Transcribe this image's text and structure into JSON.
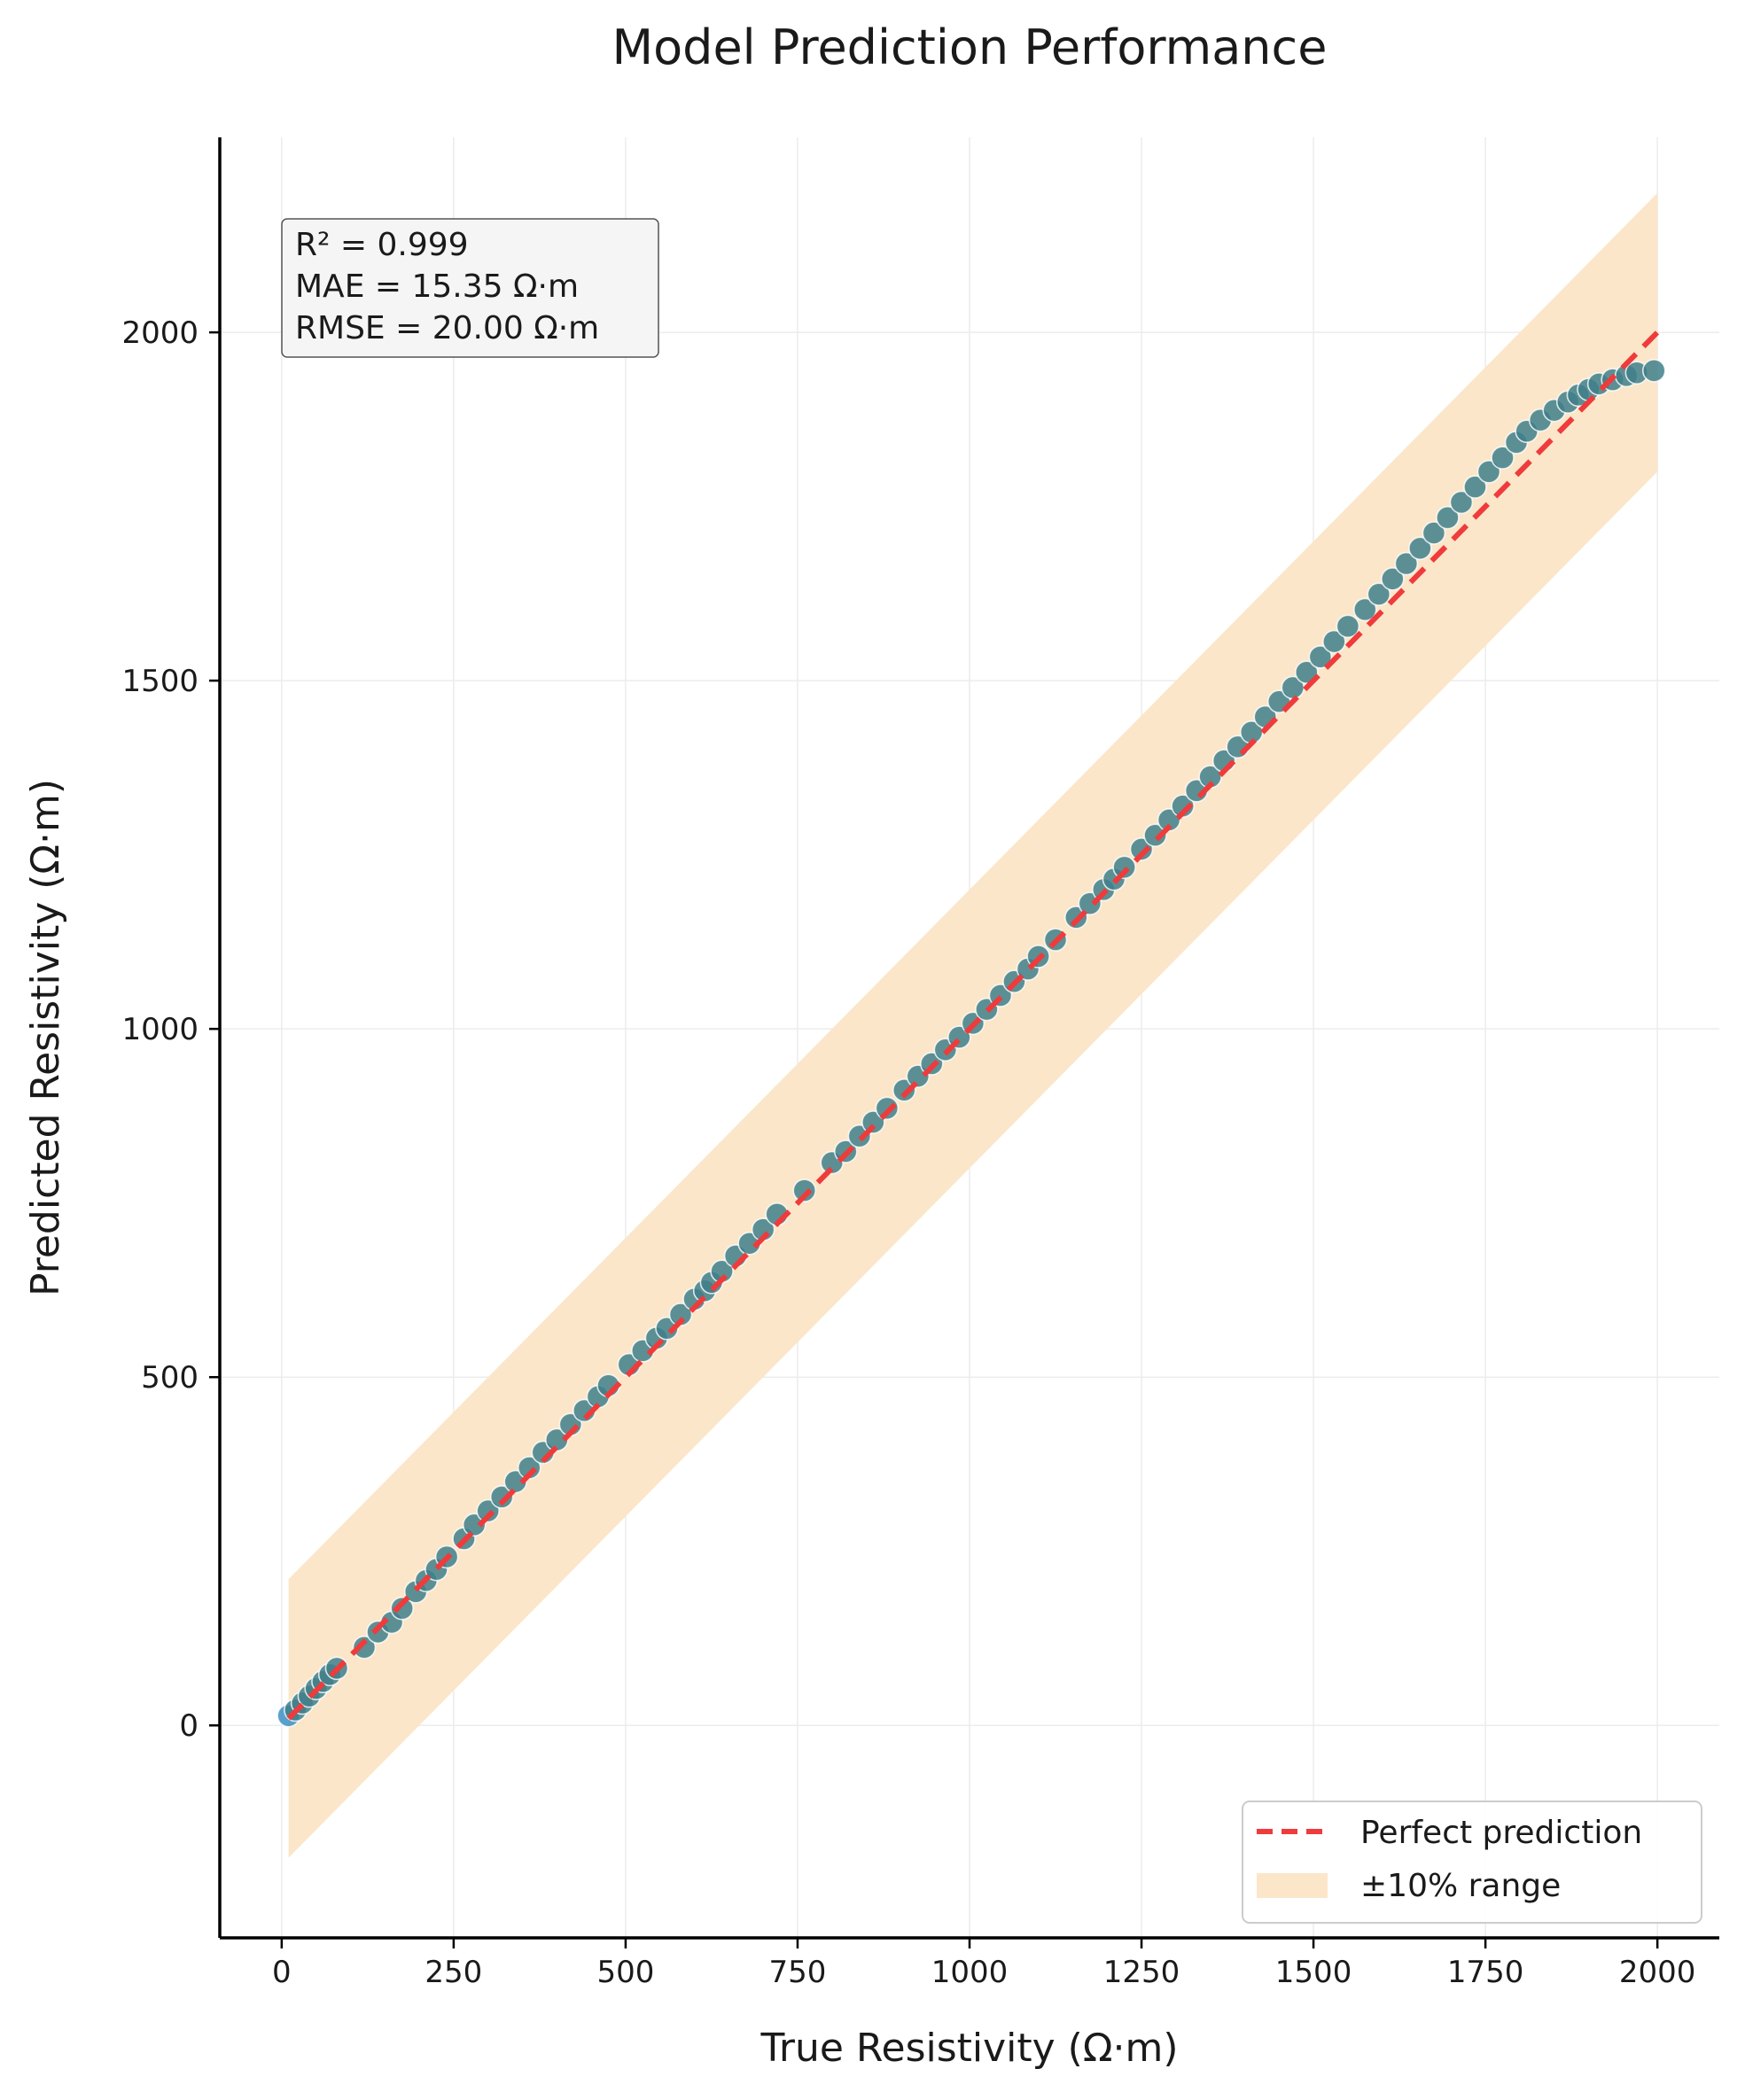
{
  "chart_data": {
    "type": "scatter",
    "title": "Model Prediction Performance",
    "xlabel": "True Resistivity (Ω·m)",
    "ylabel": "Predicted Resistivity (Ω·m)",
    "xlim": [
      -90,
      2090
    ],
    "ylim": [
      -305,
      2280
    ],
    "xticks": [
      0,
      250,
      500,
      750,
      1000,
      1250,
      1500,
      1750,
      2000
    ],
    "yticks": [
      0,
      500,
      1000,
      1500,
      2000
    ],
    "grid": true,
    "stats": {
      "r2": "R² = 0.999",
      "mae": "MAE = 15.35 Ω·m",
      "rmse": "RMSE = 20.00 Ω·m"
    },
    "legend": {
      "placement": "lower-right",
      "entries": [
        {
          "label": "Perfect prediction",
          "type": "line",
          "color": "#ef3b3b"
        },
        {
          "label": "±10% range",
          "type": "band",
          "color": "#fbe6c9"
        }
      ]
    },
    "perfect_line": {
      "x": [
        10,
        2000
      ],
      "y": [
        10,
        2000
      ]
    },
    "band": {
      "x_range": [
        10,
        2000
      ],
      "offset": 200
    },
    "colors": {
      "point_fill": "#3f7f8a",
      "point_edge": "#ffffff",
      "first_point": "#3d8fc4",
      "perfect_line": "#ef3b3b",
      "band": "#fbe6c9"
    },
    "series": [
      {
        "x": [
          10,
          20,
          30,
          40,
          50,
          60,
          70,
          80,
          120,
          140,
          160,
          175,
          195,
          210,
          225,
          240,
          265,
          280,
          300,
          320,
          340,
          360,
          380,
          400,
          420,
          440,
          460,
          475,
          505,
          525,
          545,
          560,
          580,
          600,
          615,
          625,
          640,
          660,
          680,
          700,
          720,
          760,
          800,
          820,
          840,
          860,
          880,
          905,
          925,
          945,
          965,
          985,
          1005,
          1025,
          1045,
          1065,
          1085,
          1100,
          1125,
          1155,
          1175,
          1195,
          1210,
          1225,
          1250,
          1270,
          1290,
          1310,
          1330,
          1350,
          1370,
          1390,
          1410,
          1430,
          1450,
          1470,
          1490,
          1510,
          1530,
          1550,
          1575,
          1595,
          1615,
          1635,
          1655,
          1675,
          1695,
          1715,
          1735,
          1755,
          1775,
          1795,
          1810,
          1830,
          1850,
          1870,
          1885,
          1900,
          1915,
          1935,
          1955,
          1970,
          1995
        ],
        "y": [
          14,
          22,
          32,
          42,
          53,
          63,
          73,
          82,
          112,
          134,
          148,
          168,
          192,
          208,
          224,
          242,
          268,
          288,
          308,
          328,
          350,
          370,
          392,
          410,
          432,
          452,
          472,
          488,
          518,
          538,
          556,
          570,
          590,
          612,
          624,
          636,
          652,
          674,
          692,
          712,
          734,
          768,
          808,
          824,
          846,
          866,
          886,
          912,
          932,
          950,
          970,
          988,
          1008,
          1028,
          1048,
          1068,
          1086,
          1104,
          1128,
          1160,
          1180,
          1200,
          1215,
          1232,
          1258,
          1278,
          1300,
          1320,
          1342,
          1362,
          1385,
          1405,
          1426,
          1448,
          1470,
          1490,
          1512,
          1534,
          1556,
          1578,
          1602,
          1624,
          1646,
          1668,
          1690,
          1712,
          1734,
          1756,
          1778,
          1800,
          1820,
          1842,
          1858,
          1874,
          1888,
          1900,
          1910,
          1918,
          1926,
          1932,
          1938,
          1942,
          1945
        ]
      }
    ]
  }
}
